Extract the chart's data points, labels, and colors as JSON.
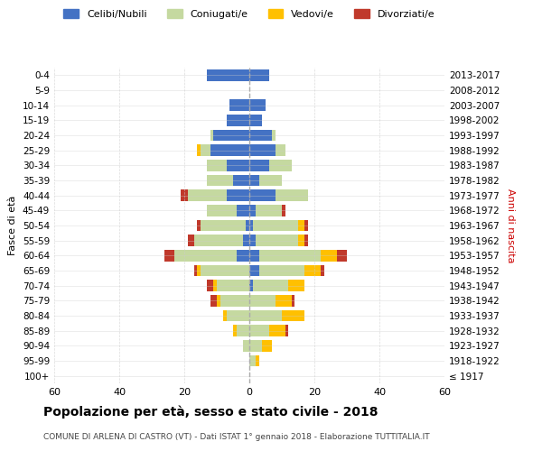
{
  "age_groups": [
    "100+",
    "95-99",
    "90-94",
    "85-89",
    "80-84",
    "75-79",
    "70-74",
    "65-69",
    "60-64",
    "55-59",
    "50-54",
    "45-49",
    "40-44",
    "35-39",
    "30-34",
    "25-29",
    "20-24",
    "15-19",
    "10-14",
    "5-9",
    "0-4"
  ],
  "birth_years": [
    "≤ 1917",
    "1918-1922",
    "1923-1927",
    "1928-1932",
    "1933-1937",
    "1938-1942",
    "1943-1947",
    "1948-1952",
    "1953-1957",
    "1958-1962",
    "1963-1967",
    "1968-1972",
    "1973-1977",
    "1978-1982",
    "1983-1987",
    "1988-1992",
    "1993-1997",
    "1998-2002",
    "2003-2007",
    "2008-2012",
    "2013-2017"
  ],
  "male_celibi": [
    0,
    0,
    0,
    0,
    0,
    0,
    0,
    0,
    4,
    2,
    1,
    4,
    7,
    5,
    7,
    12,
    11,
    7,
    6,
    0,
    13
  ],
  "male_coniugati": [
    0,
    0,
    2,
    4,
    7,
    9,
    10,
    15,
    19,
    15,
    14,
    9,
    12,
    8,
    6,
    3,
    1,
    0,
    0,
    0,
    0
  ],
  "male_vedovi": [
    0,
    0,
    0,
    1,
    1,
    1,
    1,
    1,
    0,
    0,
    0,
    0,
    0,
    0,
    0,
    1,
    0,
    0,
    0,
    0,
    0
  ],
  "male_divorziati": [
    0,
    0,
    0,
    0,
    0,
    2,
    2,
    1,
    3,
    2,
    1,
    0,
    2,
    0,
    0,
    0,
    0,
    0,
    0,
    0,
    0
  ],
  "female_celibi": [
    0,
    0,
    0,
    0,
    0,
    0,
    1,
    3,
    3,
    2,
    1,
    2,
    8,
    3,
    6,
    8,
    7,
    4,
    5,
    0,
    6
  ],
  "female_coniugati": [
    0,
    2,
    4,
    6,
    10,
    8,
    11,
    14,
    19,
    13,
    14,
    8,
    10,
    7,
    7,
    3,
    1,
    0,
    0,
    0,
    0
  ],
  "female_vedovi": [
    0,
    1,
    3,
    5,
    7,
    5,
    5,
    5,
    5,
    2,
    2,
    0,
    0,
    0,
    0,
    0,
    0,
    0,
    0,
    0,
    0
  ],
  "female_divorziati": [
    0,
    0,
    0,
    1,
    0,
    1,
    0,
    1,
    3,
    1,
    1,
    1,
    0,
    0,
    0,
    0,
    0,
    0,
    0,
    0,
    0
  ],
  "color_celibi": "#4472c4",
  "color_coniugati": "#c5d9a0",
  "color_vedovi": "#ffc000",
  "color_divorziati": "#c0392b",
  "title": "Popolazione per età, sesso e stato civile - 2018",
  "subtitle": "COMUNE DI ARLENA DI CASTRO (VT) - Dati ISTAT 1° gennaio 2018 - Elaborazione TUTTITALIA.IT",
  "ylabel_left": "Fasce di età",
  "ylabel_right": "Anni di nascita",
  "xlim": 60,
  "background_color": "#f5f5f5",
  "grid_color": "#cccccc"
}
